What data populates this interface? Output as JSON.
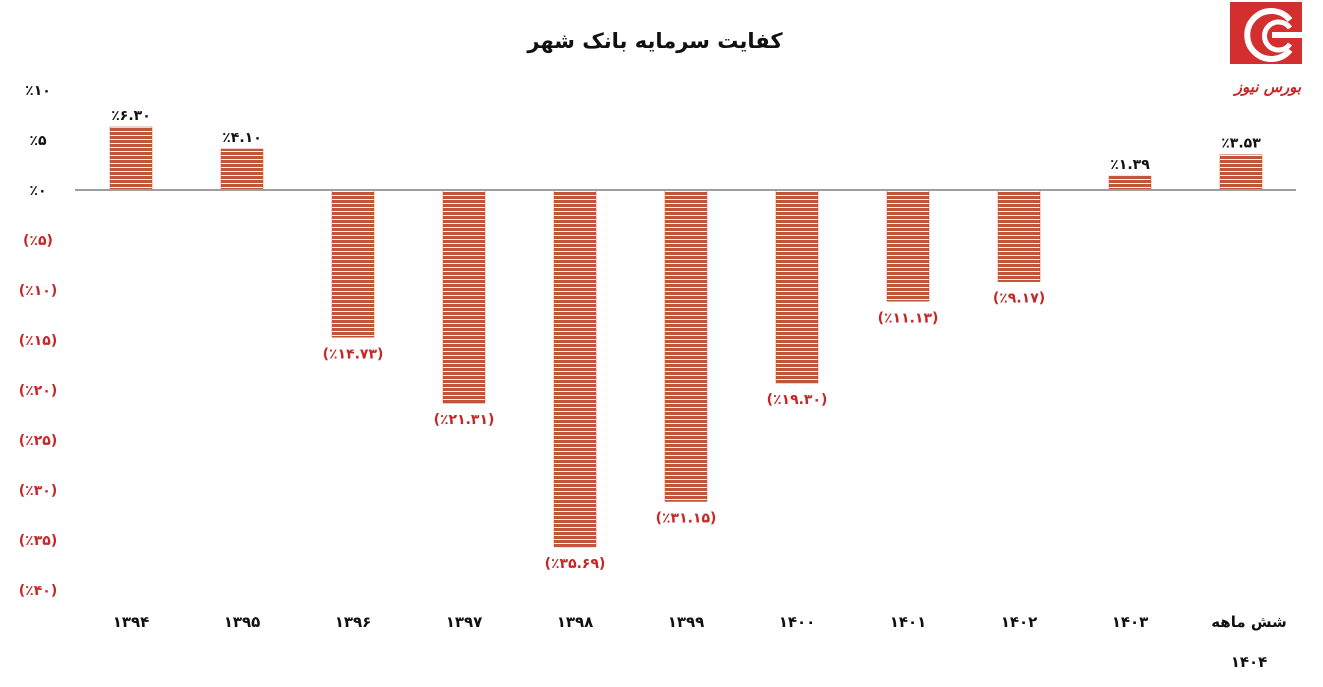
{
  "chart_data": {
    "type": "bar",
    "title": "کفایت سرمایه بانک شهر",
    "categories": [
      "۱۳۹۴",
      "۱۳۹۵",
      "۱۳۹۶",
      "۱۳۹۷",
      "۱۳۹۸",
      "۱۳۹۹",
      "۱۴۰۰",
      "۱۴۰۱",
      "۱۴۰۲",
      "۱۴۰۳",
      "شش ماهه ۱۴۰۴"
    ],
    "category_lines": [
      [
        "۱۳۹۴"
      ],
      [
        "۱۳۹۵"
      ],
      [
        "۱۳۹۶"
      ],
      [
        "۱۳۹۷"
      ],
      [
        "۱۳۹۸"
      ],
      [
        "۱۳۹۹"
      ],
      [
        "۱۴۰۰"
      ],
      [
        "۱۴۰۱"
      ],
      [
        "۱۴۰۲"
      ],
      [
        "۱۴۰۳"
      ],
      [
        "شش ماهه",
        "۱۴۰۴"
      ]
    ],
    "values": [
      6.3,
      4.1,
      -14.73,
      -21.31,
      -35.69,
      -31.15,
      -19.3,
      -11.13,
      -9.17,
      1.39,
      3.53
    ],
    "data_labels": [
      "٪۶.۳۰",
      "٪۴.۱۰",
      "(٪۱۴.۷۳)",
      "(٪۲۱.۳۱)",
      "(٪۳۵.۶۹)",
      "(٪۳۱.۱۵)",
      "(٪۱۹.۳۰)",
      "(٪۱۱.۱۳)",
      "(٪۹.۱۷)",
      "٪۱.۳۹",
      "٪۳.۵۳"
    ],
    "ylim": [
      -40,
      10
    ],
    "yticks": [
      10,
      5,
      0,
      -5,
      -10,
      -15,
      -20,
      -25,
      -30,
      -35,
      -40
    ],
    "ytick_labels": [
      "٪۱۰",
      "٪۵",
      "٪۰",
      "(٪۵)",
      "(٪۱۰)",
      "(٪۱۵)",
      "(٪۲۰)",
      "(٪۲۵)",
      "(٪۳۰)",
      "(٪۳۵)",
      "(٪۴۰)"
    ],
    "xlabel": "",
    "ylabel": "",
    "grid": false,
    "legend": "none",
    "colors": {
      "bar": "#c0553a",
      "bar_stripe": "#ffffff",
      "positive_text": "#111111",
      "negative_text": "#c62828",
      "axis": "#9e9e9e"
    }
  },
  "logo": {
    "text": "بورس نیوز",
    "color": "#c62828",
    "icon": "bourse-news-logo-icon"
  }
}
